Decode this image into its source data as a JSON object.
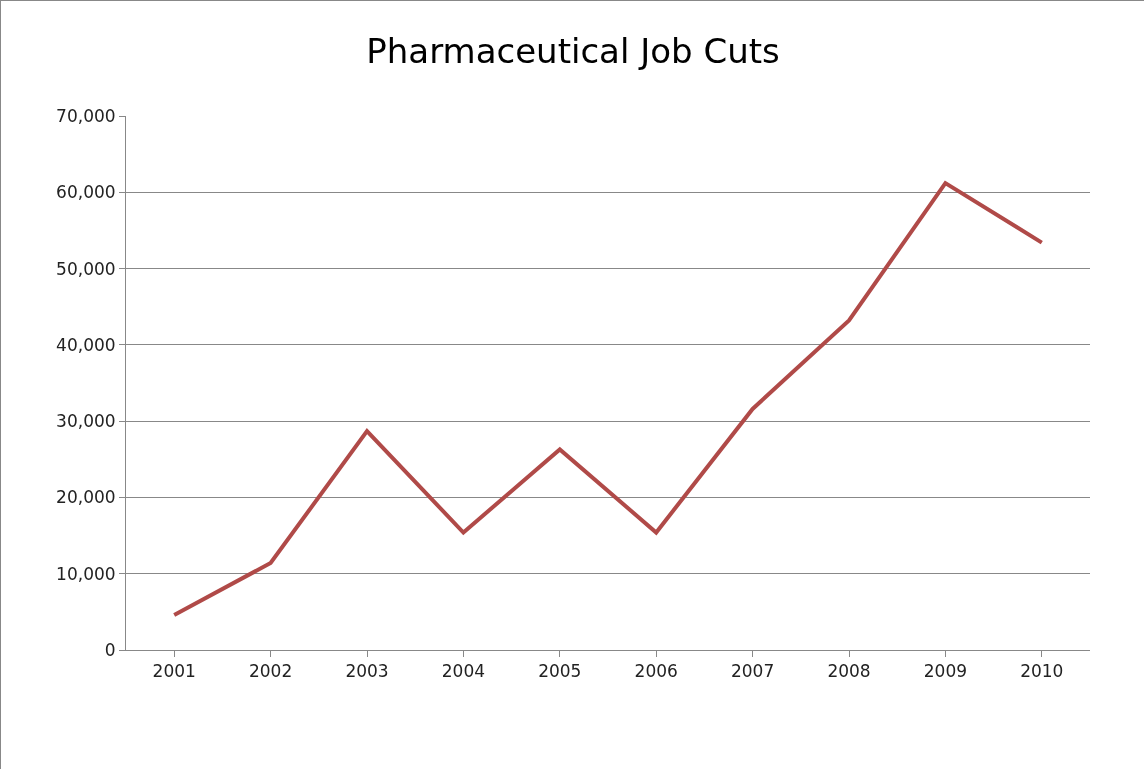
{
  "chart_data": {
    "type": "line",
    "title": "Pharmaceutical Job Cuts",
    "categories": [
      "2001",
      "2002",
      "2003",
      "2004",
      "2005",
      "2006",
      "2007",
      "2008",
      "2009",
      "2010"
    ],
    "series": [
      {
        "color": "#b04a48",
        "values": [
          4600,
          11400,
          28700,
          15400,
          26300,
          15400,
          31600,
          43200,
          61200,
          53400
        ]
      }
    ],
    "ylim": [
      0,
      70000
    ],
    "yticks": [
      0,
      {
        "value": 10000,
        "label": "10,000"
      },
      {
        "value": 20000,
        "label": "20,000"
      },
      {
        "value": 30000,
        "label": "30,000"
      },
      {
        "value": 40000,
        "label": "40,000"
      },
      {
        "value": 50000,
        "label": "50,000"
      },
      {
        "value": 60000,
        "label": "60,000"
      },
      {
        "value": 70000,
        "label": "70,000"
      }
    ],
    "grid": "y",
    "legend": false,
    "marker": "none",
    "line_style": "solid"
  }
}
